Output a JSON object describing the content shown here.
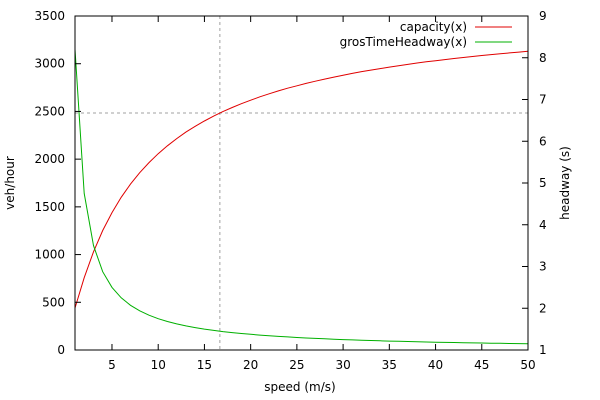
{
  "chart_data": {
    "type": "line",
    "title": "",
    "xlabel": "speed (m/s)",
    "ylabel": "veh/hour",
    "y2label": "headway (s)",
    "xlim": [
      1,
      50
    ],
    "ylim": [
      0,
      3500
    ],
    "y2lim": [
      1,
      9
    ],
    "xticks": [
      5,
      10,
      15,
      20,
      25,
      30,
      35,
      40,
      45,
      50
    ],
    "yticks": [
      0,
      500,
      1000,
      1500,
      2000,
      2500,
      3000,
      3500
    ],
    "y2ticks": [
      1,
      2,
      3,
      4,
      5,
      6,
      7,
      8,
      9
    ],
    "grid": false,
    "legend_position": "top-right",
    "reference_lines": {
      "vertical_x": 16.67,
      "horizontal_y": 2483,
      "color": "#a0a0a0",
      "style": "dashed"
    },
    "x": [
      1,
      2,
      3,
      4,
      5,
      6,
      7,
      8,
      9,
      10,
      11,
      12,
      13,
      14,
      15,
      16,
      17,
      18,
      19,
      20,
      21,
      22,
      23,
      24,
      25,
      26,
      27,
      28,
      29,
      30,
      31,
      32,
      33,
      34,
      35,
      36,
      37,
      38,
      39,
      40,
      41,
      42,
      43,
      44,
      45,
      46,
      47,
      48,
      49,
      50
    ],
    "series": [
      {
        "name": "capacity(x)",
        "axis": "y1",
        "color": "#e00000",
        "values": [
          440,
          758,
          1029,
          1252,
          1440,
          1600,
          1738,
          1858,
          1964,
          2057,
          2140,
          2215,
          2283,
          2344,
          2400,
          2451,
          2498,
          2541,
          2581,
          2618,
          2653,
          2685,
          2715,
          2743,
          2769,
          2794,
          2817,
          2839,
          2860,
          2880,
          2899,
          2917,
          2933,
          2949,
          2965,
          2979,
          2993,
          3007,
          3020,
          3032,
          3043,
          3055,
          3065,
          3076,
          3086,
          3095,
          3104,
          3113,
          3122,
          3130
        ]
      },
      {
        "name": "grosTimeHeadway(x)",
        "axis": "y2",
        "color": "#00b000",
        "values": [
          8.2,
          4.75,
          3.5,
          2.875,
          2.5,
          2.25,
          2.071,
          1.938,
          1.833,
          1.75,
          1.682,
          1.625,
          1.577,
          1.536,
          1.5,
          1.469,
          1.441,
          1.417,
          1.395,
          1.375,
          1.357,
          1.341,
          1.326,
          1.313,
          1.3,
          1.288,
          1.278,
          1.268,
          1.259,
          1.25,
          1.242,
          1.234,
          1.227,
          1.221,
          1.214,
          1.208,
          1.203,
          1.197,
          1.192,
          1.188,
          1.183,
          1.179,
          1.174,
          1.17,
          1.167,
          1.163,
          1.16,
          1.156,
          1.153,
          1.15
        ]
      }
    ]
  }
}
